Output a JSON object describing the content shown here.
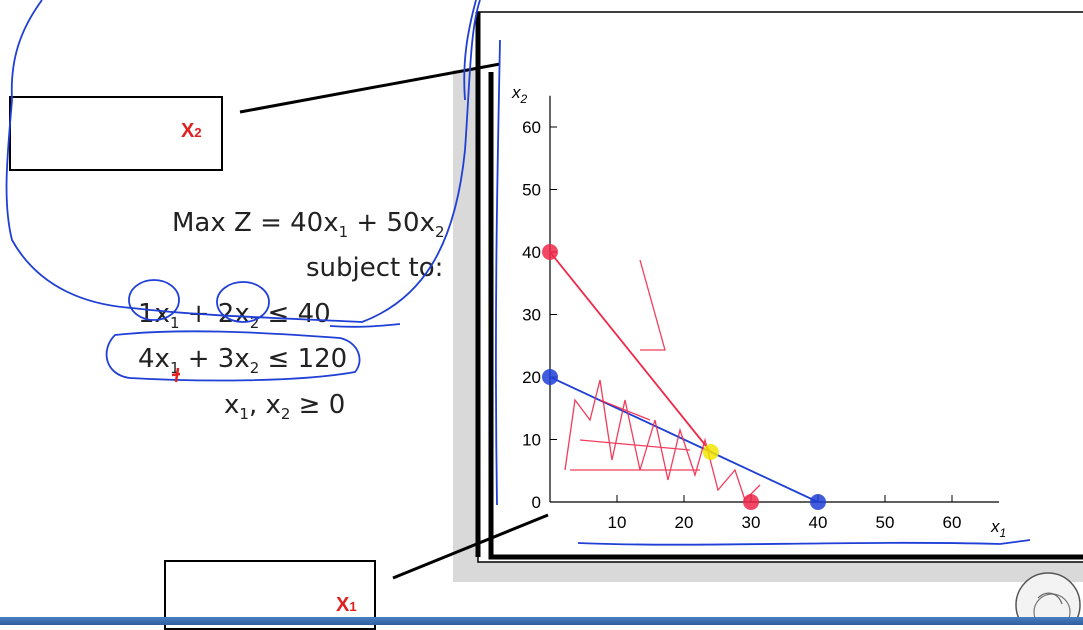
{
  "boxes": {
    "x2_label": "X",
    "x2_sub": "2",
    "x1_label": "X",
    "x1_sub": "1"
  },
  "model": {
    "objective_prefix": "Max Z = 40x",
    "objective_mid": " + 50x",
    "subject_to": "subject to:",
    "c1_a": "1x",
    "c1_b": " + 2x",
    "c1_rhs": " ≤ 40",
    "c2_a": "4x",
    "c2_b": " + 3x",
    "c2_rhs": " ≤ 120",
    "nonneg_a": "x",
    "nonneg_b": ", x",
    "nonneg_rhs": " ≥ 0",
    "sub1": "1",
    "sub2": "2"
  },
  "colors": {
    "pen_blue": "#1f3fd6",
    "pen_red": "#f0284a",
    "pen_yellow": "#f2e600",
    "accent_red": "#e02020",
    "axis": "#000000"
  },
  "chart_data": {
    "type": "line",
    "xlabel": "x1",
    "ylabel": "x2",
    "xlim": [
      0,
      70
    ],
    "ylim": [
      0,
      65
    ],
    "x_ticks": [
      10,
      20,
      30,
      40,
      50,
      60
    ],
    "y_ticks": [
      0,
      10,
      20,
      30,
      40,
      50,
      60
    ],
    "series": [
      {
        "points": [
          [
            0,
            20
          ],
          [
            24,
            8
          ],
          [
            40,
            0
          ]
        ]
      },
      {
        "points": [
          [
            0,
            40
          ],
          [
            24,
            8
          ]
        ]
      }
    ],
    "marked_points": [
      {
        "x": 0,
        "y": 40,
        "color": "red"
      },
      {
        "x": 0,
        "y": 20,
        "color": "blue"
      },
      {
        "x": 24,
        "y": 8,
        "color": "yellow"
      },
      {
        "x": 30,
        "y": 0,
        "color": "red"
      },
      {
        "x": 40,
        "y": 0,
        "color": "blue"
      }
    ]
  }
}
